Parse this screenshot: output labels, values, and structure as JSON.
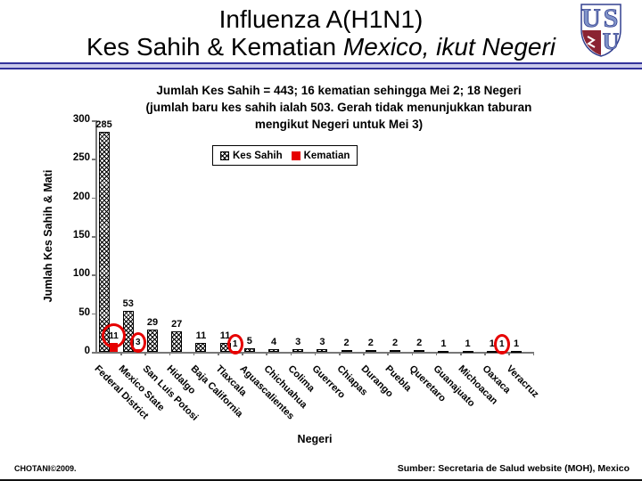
{
  "header": {
    "title_line1": "Influenza A(H1N1)",
    "title_line2_prefix": "Kes Sahih & Kematian ",
    "title_line2_italic": "Mexico, ikut Negeri",
    "logo_letters": {
      "top_left": "U",
      "top_right": "S",
      "bottom_right": "U"
    }
  },
  "chart_data": {
    "type": "bar",
    "title_lines": [
      "Jumlah Kes Sahih = 443; 16 kematian sehingga Mei 2; 18 Negeri",
      "(jumlah baru kes sahih ialah 503. Gerah tidak menunjukkan taburan",
      "mengikut Negeri untuk Mei 3)"
    ],
    "legend": [
      {
        "name": "Kes Sahih",
        "style": "hatch"
      },
      {
        "name": "Kematian",
        "style": "red"
      }
    ],
    "legend_position": "top-center",
    "grid": false,
    "categories": [
      "Federal District",
      "Mexico State",
      "San Luis Potosi",
      "Hidalgo",
      "Baja California",
      "Tlaxcala",
      "Aguascalientes",
      "Chichuahua",
      "Colima",
      "Guerrero",
      "Chiapas",
      "Durango",
      "Puebla",
      "Queretaro",
      "Guanajuato",
      "Michoacan",
      "Oaxaca",
      "Veracruz"
    ],
    "series": [
      {
        "name": "Kes Sahih",
        "values": [
          285,
          53,
          29,
          27,
          11,
          11,
          5,
          4,
          3,
          3,
          2,
          2,
          2,
          2,
          1,
          1,
          1,
          1
        ]
      },
      {
        "name": "Kematian",
        "values": [
          11,
          3,
          0,
          0,
          0,
          1,
          0,
          0,
          0,
          0,
          0,
          0,
          0,
          0,
          0,
          0,
          1,
          0
        ]
      }
    ],
    "death_values_circled_in_red": {
      "Federal District": 11,
      "Mexico State": 3,
      "Tlaxcala": 1,
      "Oaxaca": 1
    },
    "xlabel": "Negeri",
    "ylabel": "Jumlah Kes Sahih & Mati",
    "ylim": [
      0,
      300
    ],
    "yticks": [
      0,
      50,
      100,
      150,
      200,
      250,
      300
    ]
  },
  "footer": {
    "credit": "CHOTANI©2009.",
    "source": "Sumber: Secretaria de Salud website (MOH), Mexico"
  },
  "colors": {
    "death_red": "#e60000",
    "rule_blue": "#32329b",
    "axis_gray": "#777777",
    "logo_blue": "#8093c8",
    "logo_maroon": "#8b2332"
  }
}
